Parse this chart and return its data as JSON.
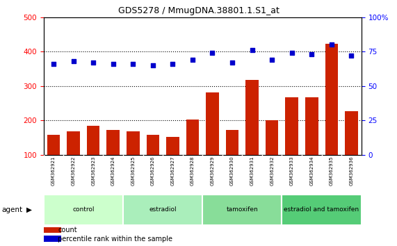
{
  "title": "GDS5278 / MmugDNA.38801.1.S1_at",
  "samples": [
    "GSM362921",
    "GSM362922",
    "GSM362923",
    "GSM362924",
    "GSM362925",
    "GSM362926",
    "GSM362927",
    "GSM362928",
    "GSM362929",
    "GSM362930",
    "GSM362931",
    "GSM362932",
    "GSM362933",
    "GSM362934",
    "GSM362935",
    "GSM362936"
  ],
  "counts": [
    158,
    168,
    185,
    172,
    168,
    158,
    153,
    203,
    281,
    172,
    318,
    200,
    268,
    268,
    422,
    228
  ],
  "percentile_ranks_pct": [
    66,
    68,
    67,
    66,
    66,
    65,
    66,
    69,
    74,
    67,
    76,
    69,
    74,
    73,
    80,
    72
  ],
  "groups": [
    {
      "label": "control",
      "start": 0,
      "end": 3,
      "color": "#ccffcc"
    },
    {
      "label": "estradiol",
      "start": 4,
      "end": 7,
      "color": "#aaeebb"
    },
    {
      "label": "tamoxifen",
      "start": 8,
      "end": 11,
      "color": "#88dd99"
    },
    {
      "label": "estradiol and tamoxifen",
      "start": 12,
      "end": 15,
      "color": "#55cc77"
    }
  ],
  "bar_color": "#cc2200",
  "dot_color": "#0000cc",
  "ylim_left": [
    100,
    500
  ],
  "ylim_right": [
    0,
    100
  ],
  "yticks_left": [
    100,
    200,
    300,
    400,
    500
  ],
  "yticks_right": [
    0,
    25,
    50,
    75,
    100
  ],
  "grid_values": [
    200,
    300,
    400
  ],
  "bg_color": "#ffffff",
  "plot_bg": "#ffffff",
  "xtick_bg": "#d0d0d0"
}
